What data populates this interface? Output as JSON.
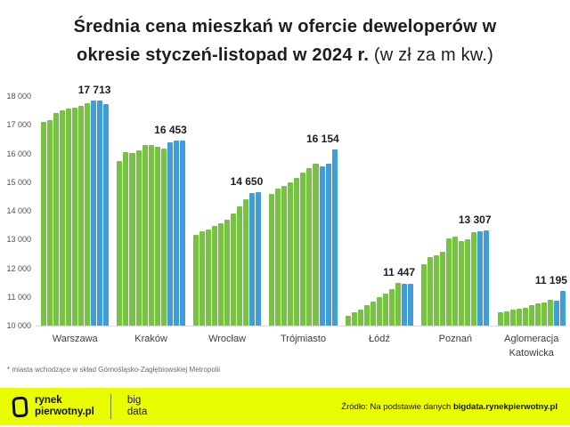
{
  "title": {
    "line1": "Średnia cena mieszkań w ofercie deweloperów w",
    "line2_bold": "okresie styczeń-listopad w 2024 r.",
    "line2_normal": " (w zł za m kw.)"
  },
  "footnote": "* miasta wchodzące w skład Górnośląsko-Zagłębiowskiej Metropolii",
  "footer": {
    "logo_line1": "rynek",
    "logo_line2": "pierwotny.pl",
    "bigdata_line1": "big",
    "bigdata_line2": "data",
    "source_prefix": "Źródło: Na podstawie danych ",
    "source_bold": "bigdata.rynekpierwotny.pl"
  },
  "colors": {
    "green": "#76c341",
    "blue": "#3f9ed9",
    "footer_yellow": "#eafc02",
    "title_text": "#1d1d1d",
    "axis_text": "#4f4f4f"
  },
  "chart_data": {
    "type": "bar",
    "title": "Średnia cena mieszkań w ofercie deweloperów w okresie styczeń-listopad w 2024 r.",
    "unit": "zł za m kw.",
    "ylim": [
      10000,
      18000
    ],
    "bars_per_group": 11,
    "grid": "off",
    "legend": "none",
    "yticks": [
      {
        "label": "18 000",
        "value": 18000
      },
      {
        "label": "17 000",
        "value": 17000
      },
      {
        "label": "16 000",
        "value": 16000
      },
      {
        "label": "15 000",
        "value": 15000
      },
      {
        "label": "14 000",
        "value": 14000
      },
      {
        "label": "13 000",
        "value": 13000
      },
      {
        "label": "12 000",
        "value": 12000
      },
      {
        "label": "11 000",
        "value": 11000
      },
      {
        "label": "10 000",
        "value": 10000
      }
    ],
    "groups": [
      {
        "label": "Warszawa",
        "final_label": "17 713",
        "final_value": 17713,
        "blue_last": 3,
        "values": [
          17100,
          17150,
          17400,
          17500,
          17560,
          17600,
          17660,
          17760,
          17860,
          17850,
          17713
        ]
      },
      {
        "label": "Kraków",
        "final_label": "16 453",
        "final_value": 16453,
        "blue_last": 3,
        "values": [
          15750,
          16050,
          16000,
          16100,
          16300,
          16280,
          16230,
          16180,
          16380,
          16440,
          16453
        ]
      },
      {
        "label": "Wrocław",
        "final_label": "14 650",
        "final_value": 14650,
        "blue_last": 2,
        "values": [
          13150,
          13280,
          13360,
          13480,
          13580,
          13700,
          13900,
          14150,
          14400,
          14630,
          14650
        ]
      },
      {
        "label": "Trójmiasto",
        "final_label": "16 154",
        "final_value": 16154,
        "blue_last": 3,
        "values": [
          14600,
          14780,
          14870,
          15000,
          15160,
          15330,
          15500,
          15630,
          15560,
          15640,
          16154
        ]
      },
      {
        "label": "Łódź",
        "final_label": "11 447",
        "final_value": 11447,
        "blue_last": 2,
        "values": [
          10350,
          10450,
          10550,
          10700,
          10850,
          11000,
          11120,
          11280,
          11500,
          11460,
          11447
        ]
      },
      {
        "label": "Poznań",
        "final_label": "13 307",
        "final_value": 13307,
        "blue_last": 2,
        "values": [
          12150,
          12400,
          12450,
          12560,
          13050,
          13100,
          12950,
          13010,
          13260,
          13300,
          13307
        ]
      },
      {
        "label": "Aglomeracja Katowicka",
        "final_label": "11 195",
        "final_value": 11195,
        "blue_last": 2,
        "values": [
          10450,
          10500,
          10560,
          10600,
          10620,
          10700,
          10760,
          10820,
          10900,
          10860,
          11195
        ]
      }
    ]
  }
}
